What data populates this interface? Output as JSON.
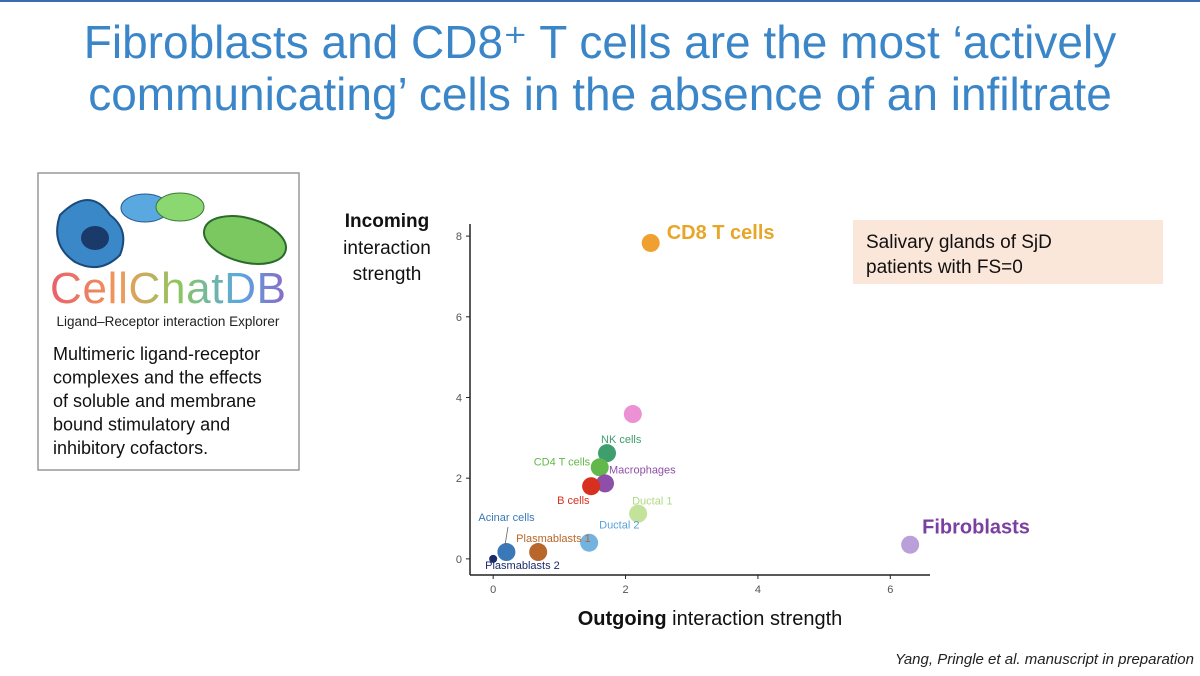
{
  "slide": {
    "title_lines": [
      "Fibroblasts and CD8⁺ T cells are the most ‘actively",
      "communicating’ cells in the absence of an infiltrate"
    ],
    "logo": "CellChatDB",
    "logo_caption": "Ligand–Receptor interaction Explorer",
    "description_lines": [
      "Multimeric ligand-receptor",
      "complexes and the effects",
      "of soluble and membrane",
      "bound stimulatory and",
      "inhibitory cofactors."
    ],
    "note_lines": [
      "Salivary glands of SjD",
      "patients with FS=0"
    ],
    "citation": "Yang, Pringle et al. manuscript in preparation"
  },
  "chart_data": {
    "type": "scatter",
    "ylabel_bold": "Incoming",
    "ylabel_lines": [
      "interaction",
      "strength"
    ],
    "xlabel_bold": "Outgoing",
    "xlabel": "interaction strength",
    "xlim": [
      -0.35,
      6.6
    ],
    "ylim": [
      -0.4,
      8.3
    ],
    "xticks": [
      0,
      2,
      4,
      6
    ],
    "yticks": [
      0,
      2,
      4,
      6,
      8
    ],
    "series": [
      {
        "name": "CD8 T cells",
        "color": "#f0a030",
        "x": [
          2.38
        ],
        "values": [
          7.83
        ]
      },
      {
        "name": "Fibroblasts",
        "color": "#b9a0d8",
        "x": [
          6.3
        ],
        "values": [
          0.35
        ]
      },
      {
        "name": null,
        "color": "#ec92d4",
        "x": [
          2.11
        ],
        "values": [
          3.59
        ]
      },
      {
        "name": "NK cells",
        "color": "#3f9e6e",
        "x": [
          1.72
        ],
        "values": [
          2.62
        ]
      },
      {
        "name": "CD4 T cells",
        "color": "#62b84a",
        "x": [
          1.61
        ],
        "values": [
          2.27
        ]
      },
      {
        "name": "Macrophages",
        "color": "#8e4fa8",
        "x": [
          1.69
        ],
        "values": [
          1.87
        ]
      },
      {
        "name": "B cells",
        "color": "#d7301f",
        "x": [
          1.48
        ],
        "values": [
          1.8
        ]
      },
      {
        "name": "Ductal 1",
        "color": "#c3e29a",
        "x": [
          2.19
        ],
        "values": [
          1.12
        ]
      },
      {
        "name": "Ductal 2",
        "color": "#74b3e0",
        "x": [
          1.45
        ],
        "values": [
          0.4
        ]
      },
      {
        "name": "Acinar cells",
        "color": "#3a78b8",
        "x": [
          0.2
        ],
        "values": [
          0.17
        ]
      },
      {
        "name": "Plasmablasts 1",
        "color": "#b8662a",
        "x": [
          0.68
        ],
        "values": [
          0.17
        ]
      },
      {
        "name": "Plasmablasts 2",
        "color": "#1a2b6b",
        "x": [
          0.0
        ],
        "values": [
          0.0
        ]
      }
    ]
  }
}
